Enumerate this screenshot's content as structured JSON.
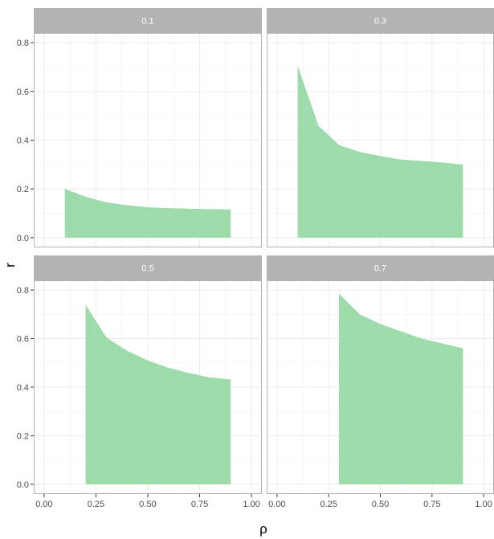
{
  "chart_data": {
    "type": "area",
    "xlabel": "ρ",
    "ylabel": "r",
    "xlim": [
      -0.05,
      1.05
    ],
    "ylim": [
      -0.04,
      0.84
    ],
    "x_ticks": [
      0.0,
      0.25,
      0.5,
      0.75,
      1.0
    ],
    "x_tick_labels": [
      "0.00",
      "0.25",
      "0.50",
      "0.75",
      "1.00"
    ],
    "y_ticks": [
      0.0,
      0.2,
      0.4,
      0.6,
      0.8
    ],
    "y_tick_labels": [
      "0.0",
      "0.2",
      "0.4",
      "0.6",
      "0.8"
    ],
    "grid": true,
    "fill_color": "#9edbab",
    "strip_color": "#b3b3b3",
    "panels": [
      {
        "label": "0.1",
        "x": [
          0.1,
          0.2,
          0.3,
          0.4,
          0.5,
          0.6,
          0.7,
          0.8,
          0.9
        ],
        "values": [
          0.2,
          0.168,
          0.145,
          0.133,
          0.125,
          0.121,
          0.119,
          0.117,
          0.116
        ]
      },
      {
        "label": "0.3",
        "x": [
          0.1,
          0.2,
          0.3,
          0.4,
          0.5,
          0.6,
          0.7,
          0.8,
          0.9
        ],
        "values": [
          0.705,
          0.46,
          0.38,
          0.352,
          0.335,
          0.32,
          0.315,
          0.308,
          0.3
        ]
      },
      {
        "label": "0.5",
        "x": [
          0.2,
          0.3,
          0.4,
          0.5,
          0.6,
          0.7,
          0.8,
          0.9
        ],
        "values": [
          0.74,
          0.605,
          0.55,
          0.51,
          0.48,
          0.458,
          0.44,
          0.432
        ]
      },
      {
        "label": "0.7",
        "x": [
          0.3,
          0.4,
          0.5,
          0.6,
          0.7,
          0.8,
          0.9
        ],
        "values": [
          0.785,
          0.7,
          0.66,
          0.63,
          0.6,
          0.58,
          0.56
        ]
      }
    ]
  }
}
